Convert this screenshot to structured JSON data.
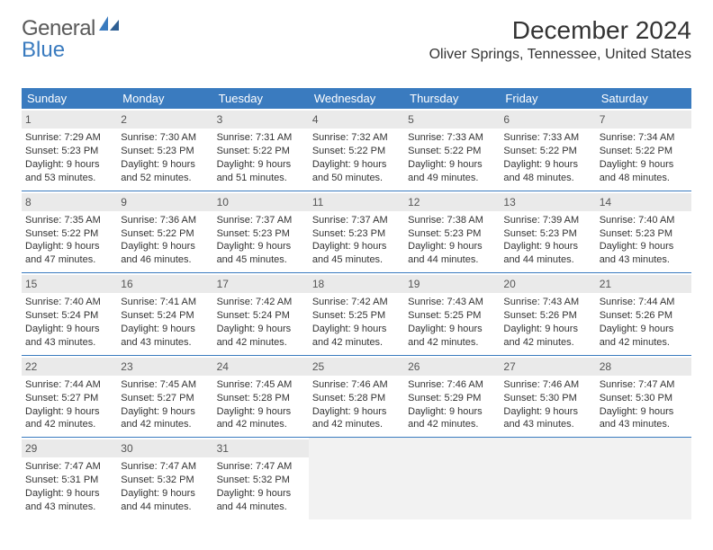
{
  "logo": {
    "text1": "General",
    "text2": "Blue"
  },
  "title": "December 2024",
  "location": "Oliver Springs, Tennessee, United States",
  "colors": {
    "header_bg": "#3a7bbf",
    "header_text": "#ffffff",
    "daynum_bg": "#eaeaea",
    "divider": "#3a7bbf",
    "empty_bg": "#f2f2f2",
    "logo_gray": "#5a5a5a",
    "logo_blue": "#3a7bbf"
  },
  "day_headers": [
    "Sunday",
    "Monday",
    "Tuesday",
    "Wednesday",
    "Thursday",
    "Friday",
    "Saturday"
  ],
  "weeks": [
    [
      {
        "num": "1",
        "sunrise": "Sunrise: 7:29 AM",
        "sunset": "Sunset: 5:23 PM",
        "daylight": "Daylight: 9 hours and 53 minutes."
      },
      {
        "num": "2",
        "sunrise": "Sunrise: 7:30 AM",
        "sunset": "Sunset: 5:23 PM",
        "daylight": "Daylight: 9 hours and 52 minutes."
      },
      {
        "num": "3",
        "sunrise": "Sunrise: 7:31 AM",
        "sunset": "Sunset: 5:22 PM",
        "daylight": "Daylight: 9 hours and 51 minutes."
      },
      {
        "num": "4",
        "sunrise": "Sunrise: 7:32 AM",
        "sunset": "Sunset: 5:22 PM",
        "daylight": "Daylight: 9 hours and 50 minutes."
      },
      {
        "num": "5",
        "sunrise": "Sunrise: 7:33 AM",
        "sunset": "Sunset: 5:22 PM",
        "daylight": "Daylight: 9 hours and 49 minutes."
      },
      {
        "num": "6",
        "sunrise": "Sunrise: 7:33 AM",
        "sunset": "Sunset: 5:22 PM",
        "daylight": "Daylight: 9 hours and 48 minutes."
      },
      {
        "num": "7",
        "sunrise": "Sunrise: 7:34 AM",
        "sunset": "Sunset: 5:22 PM",
        "daylight": "Daylight: 9 hours and 48 minutes."
      }
    ],
    [
      {
        "num": "8",
        "sunrise": "Sunrise: 7:35 AM",
        "sunset": "Sunset: 5:22 PM",
        "daylight": "Daylight: 9 hours and 47 minutes."
      },
      {
        "num": "9",
        "sunrise": "Sunrise: 7:36 AM",
        "sunset": "Sunset: 5:22 PM",
        "daylight": "Daylight: 9 hours and 46 minutes."
      },
      {
        "num": "10",
        "sunrise": "Sunrise: 7:37 AM",
        "sunset": "Sunset: 5:23 PM",
        "daylight": "Daylight: 9 hours and 45 minutes."
      },
      {
        "num": "11",
        "sunrise": "Sunrise: 7:37 AM",
        "sunset": "Sunset: 5:23 PM",
        "daylight": "Daylight: 9 hours and 45 minutes."
      },
      {
        "num": "12",
        "sunrise": "Sunrise: 7:38 AM",
        "sunset": "Sunset: 5:23 PM",
        "daylight": "Daylight: 9 hours and 44 minutes."
      },
      {
        "num": "13",
        "sunrise": "Sunrise: 7:39 AM",
        "sunset": "Sunset: 5:23 PM",
        "daylight": "Daylight: 9 hours and 44 minutes."
      },
      {
        "num": "14",
        "sunrise": "Sunrise: 7:40 AM",
        "sunset": "Sunset: 5:23 PM",
        "daylight": "Daylight: 9 hours and 43 minutes."
      }
    ],
    [
      {
        "num": "15",
        "sunrise": "Sunrise: 7:40 AM",
        "sunset": "Sunset: 5:24 PM",
        "daylight": "Daylight: 9 hours and 43 minutes."
      },
      {
        "num": "16",
        "sunrise": "Sunrise: 7:41 AM",
        "sunset": "Sunset: 5:24 PM",
        "daylight": "Daylight: 9 hours and 43 minutes."
      },
      {
        "num": "17",
        "sunrise": "Sunrise: 7:42 AM",
        "sunset": "Sunset: 5:24 PM",
        "daylight": "Daylight: 9 hours and 42 minutes."
      },
      {
        "num": "18",
        "sunrise": "Sunrise: 7:42 AM",
        "sunset": "Sunset: 5:25 PM",
        "daylight": "Daylight: 9 hours and 42 minutes."
      },
      {
        "num": "19",
        "sunrise": "Sunrise: 7:43 AM",
        "sunset": "Sunset: 5:25 PM",
        "daylight": "Daylight: 9 hours and 42 minutes."
      },
      {
        "num": "20",
        "sunrise": "Sunrise: 7:43 AM",
        "sunset": "Sunset: 5:26 PM",
        "daylight": "Daylight: 9 hours and 42 minutes."
      },
      {
        "num": "21",
        "sunrise": "Sunrise: 7:44 AM",
        "sunset": "Sunset: 5:26 PM",
        "daylight": "Daylight: 9 hours and 42 minutes."
      }
    ],
    [
      {
        "num": "22",
        "sunrise": "Sunrise: 7:44 AM",
        "sunset": "Sunset: 5:27 PM",
        "daylight": "Daylight: 9 hours and 42 minutes."
      },
      {
        "num": "23",
        "sunrise": "Sunrise: 7:45 AM",
        "sunset": "Sunset: 5:27 PM",
        "daylight": "Daylight: 9 hours and 42 minutes."
      },
      {
        "num": "24",
        "sunrise": "Sunrise: 7:45 AM",
        "sunset": "Sunset: 5:28 PM",
        "daylight": "Daylight: 9 hours and 42 minutes."
      },
      {
        "num": "25",
        "sunrise": "Sunrise: 7:46 AM",
        "sunset": "Sunset: 5:28 PM",
        "daylight": "Daylight: 9 hours and 42 minutes."
      },
      {
        "num": "26",
        "sunrise": "Sunrise: 7:46 AM",
        "sunset": "Sunset: 5:29 PM",
        "daylight": "Daylight: 9 hours and 42 minutes."
      },
      {
        "num": "27",
        "sunrise": "Sunrise: 7:46 AM",
        "sunset": "Sunset: 5:30 PM",
        "daylight": "Daylight: 9 hours and 43 minutes."
      },
      {
        "num": "28",
        "sunrise": "Sunrise: 7:47 AM",
        "sunset": "Sunset: 5:30 PM",
        "daylight": "Daylight: 9 hours and 43 minutes."
      }
    ],
    [
      {
        "num": "29",
        "sunrise": "Sunrise: 7:47 AM",
        "sunset": "Sunset: 5:31 PM",
        "daylight": "Daylight: 9 hours and 43 minutes."
      },
      {
        "num": "30",
        "sunrise": "Sunrise: 7:47 AM",
        "sunset": "Sunset: 5:32 PM",
        "daylight": "Daylight: 9 hours and 44 minutes."
      },
      {
        "num": "31",
        "sunrise": "Sunrise: 7:47 AM",
        "sunset": "Sunset: 5:32 PM",
        "daylight": "Daylight: 9 hours and 44 minutes."
      },
      null,
      null,
      null,
      null
    ]
  ]
}
